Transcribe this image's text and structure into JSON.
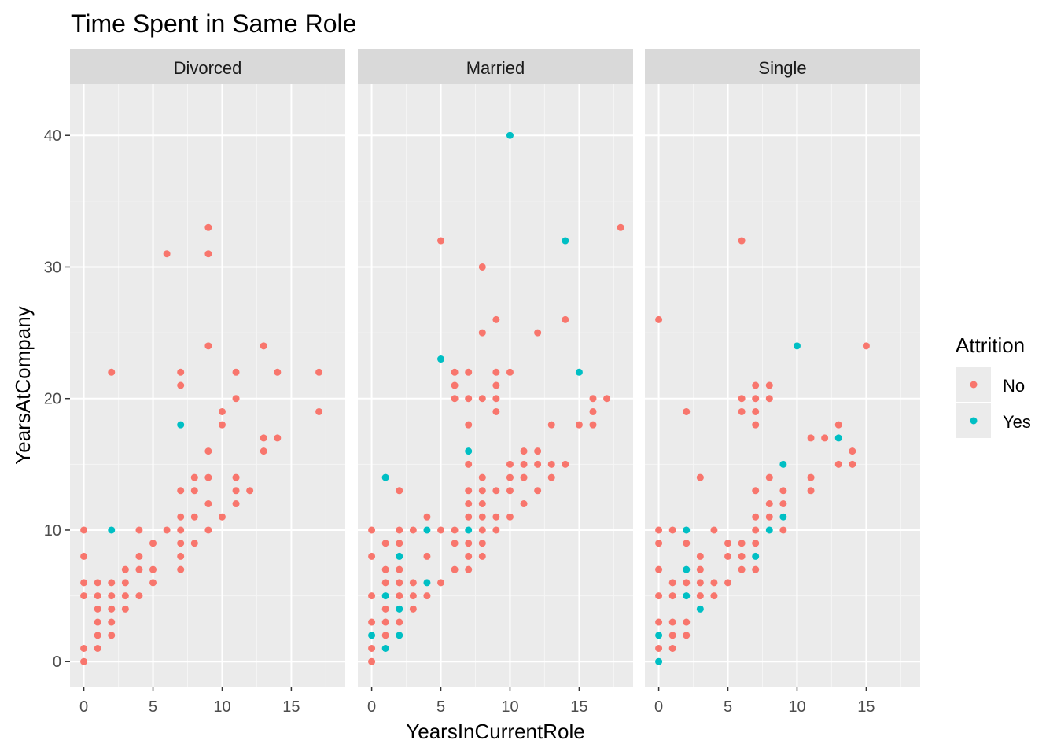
{
  "chart_data": {
    "type": "scatter",
    "title": "Time Spent in Same Role",
    "xlabel": "YearsInCurrentRole",
    "ylabel": "YearsAtCompany",
    "xlim": [
      -1,
      18.9
    ],
    "ylim": [
      -1.9,
      43.9
    ],
    "x_ticks": [
      0,
      5,
      10,
      15
    ],
    "y_ticks": [
      0,
      10,
      20,
      30,
      40
    ],
    "grid": true,
    "legend": {
      "title": "Attrition",
      "placement": "right",
      "entries": [
        {
          "name": "No",
          "color": "#F8766D"
        },
        {
          "name": "Yes",
          "color": "#00BFC4"
        }
      ]
    },
    "facets": [
      {
        "label": "Divorced",
        "points": {
          "No": [
            [
              0,
              0
            ],
            [
              0,
              1
            ],
            [
              0,
              5
            ],
            [
              0,
              6
            ],
            [
              0,
              8
            ],
            [
              0,
              10
            ],
            [
              1,
              1
            ],
            [
              1,
              2
            ],
            [
              1,
              3
            ],
            [
              1,
              4
            ],
            [
              1,
              5
            ],
            [
              1,
              6
            ],
            [
              2,
              2
            ],
            [
              2,
              3
            ],
            [
              2,
              4
            ],
            [
              2,
              5
            ],
            [
              2,
              6
            ],
            [
              2,
              22
            ],
            [
              3,
              4
            ],
            [
              3,
              5
            ],
            [
              3,
              6
            ],
            [
              3,
              7
            ],
            [
              4,
              5
            ],
            [
              4,
              7
            ],
            [
              4,
              8
            ],
            [
              4,
              10
            ],
            [
              5,
              6
            ],
            [
              5,
              7
            ],
            [
              5,
              9
            ],
            [
              6,
              10
            ],
            [
              6,
              31
            ],
            [
              7,
              7
            ],
            [
              7,
              8
            ],
            [
              7,
              9
            ],
            [
              7,
              10
            ],
            [
              7,
              11
            ],
            [
              7,
              13
            ],
            [
              7,
              21
            ],
            [
              7,
              22
            ],
            [
              8,
              9
            ],
            [
              8,
              11
            ],
            [
              8,
              13
            ],
            [
              8,
              14
            ],
            [
              9,
              10
            ],
            [
              9,
              12
            ],
            [
              9,
              14
            ],
            [
              9,
              16
            ],
            [
              9,
              24
            ],
            [
              9,
              31
            ],
            [
              9,
              33
            ],
            [
              10,
              11
            ],
            [
              10,
              18
            ],
            [
              10,
              19
            ],
            [
              11,
              12
            ],
            [
              11,
              13
            ],
            [
              11,
              14
            ],
            [
              11,
              20
            ],
            [
              11,
              22
            ],
            [
              12,
              13
            ],
            [
              13,
              16
            ],
            [
              13,
              17
            ],
            [
              13,
              24
            ],
            [
              14,
              17
            ],
            [
              14,
              22
            ],
            [
              17,
              19
            ],
            [
              17,
              22
            ]
          ],
          "Yes": [
            [
              2,
              10
            ],
            [
              7,
              18
            ]
          ]
        }
      },
      {
        "label": "Married",
        "points": {
          "No": [
            [
              0,
              0
            ],
            [
              0,
              1
            ],
            [
              0,
              3
            ],
            [
              0,
              5
            ],
            [
              0,
              8
            ],
            [
              0,
              10
            ],
            [
              1,
              2
            ],
            [
              1,
              3
            ],
            [
              1,
              4
            ],
            [
              1,
              6
            ],
            [
              1,
              7
            ],
            [
              1,
              9
            ],
            [
              2,
              3
            ],
            [
              2,
              5
            ],
            [
              2,
              6
            ],
            [
              2,
              7
            ],
            [
              2,
              9
            ],
            [
              2,
              10
            ],
            [
              2,
              13
            ],
            [
              3,
              4
            ],
            [
              3,
              5
            ],
            [
              3,
              6
            ],
            [
              3,
              10
            ],
            [
              4,
              5
            ],
            [
              4,
              8
            ],
            [
              4,
              11
            ],
            [
              5,
              6
            ],
            [
              5,
              10
            ],
            [
              5,
              32
            ],
            [
              6,
              7
            ],
            [
              6,
              9
            ],
            [
              6,
              10
            ],
            [
              6,
              20
            ],
            [
              6,
              21
            ],
            [
              6,
              22
            ],
            [
              7,
              7
            ],
            [
              7,
              8
            ],
            [
              7,
              9
            ],
            [
              7,
              11
            ],
            [
              7,
              12
            ],
            [
              7,
              13
            ],
            [
              7,
              15
            ],
            [
              7,
              18
            ],
            [
              7,
              20
            ],
            [
              7,
              22
            ],
            [
              8,
              8
            ],
            [
              8,
              9
            ],
            [
              8,
              10
            ],
            [
              8,
              11
            ],
            [
              8,
              12
            ],
            [
              8,
              13
            ],
            [
              8,
              14
            ],
            [
              8,
              20
            ],
            [
              8,
              25
            ],
            [
              8,
              30
            ],
            [
              9,
              10
            ],
            [
              9,
              11
            ],
            [
              9,
              13
            ],
            [
              9,
              19
            ],
            [
              9,
              20
            ],
            [
              9,
              21
            ],
            [
              9,
              22
            ],
            [
              9,
              26
            ],
            [
              10,
              11
            ],
            [
              10,
              13
            ],
            [
              10,
              14
            ],
            [
              10,
              15
            ],
            [
              10,
              22
            ],
            [
              11,
              12
            ],
            [
              11,
              14
            ],
            [
              11,
              15
            ],
            [
              11,
              16
            ],
            [
              12,
              13
            ],
            [
              12,
              15
            ],
            [
              12,
              16
            ],
            [
              12,
              25
            ],
            [
              13,
              14
            ],
            [
              13,
              15
            ],
            [
              13,
              18
            ],
            [
              14,
              15
            ],
            [
              14,
              26
            ],
            [
              15,
              18
            ],
            [
              16,
              18
            ],
            [
              16,
              19
            ],
            [
              16,
              20
            ],
            [
              17,
              20
            ],
            [
              18,
              33
            ]
          ],
          "Yes": [
            [
              0,
              2
            ],
            [
              1,
              1
            ],
            [
              1,
              5
            ],
            [
              1,
              14
            ],
            [
              2,
              2
            ],
            [
              2,
              4
            ],
            [
              2,
              8
            ],
            [
              4,
              6
            ],
            [
              4,
              10
            ],
            [
              5,
              23
            ],
            [
              7,
              10
            ],
            [
              7,
              16
            ],
            [
              10,
              40
            ],
            [
              14,
              32
            ],
            [
              15,
              22
            ]
          ]
        }
      },
      {
        "label": "Single",
        "points": {
          "No": [
            [
              0,
              1
            ],
            [
              0,
              3
            ],
            [
              0,
              5
            ],
            [
              0,
              7
            ],
            [
              0,
              9
            ],
            [
              0,
              10
            ],
            [
              0,
              26
            ],
            [
              1,
              1
            ],
            [
              1,
              2
            ],
            [
              1,
              3
            ],
            [
              1,
              5
            ],
            [
              1,
              6
            ],
            [
              1,
              10
            ],
            [
              2,
              2
            ],
            [
              2,
              3
            ],
            [
              2,
              6
            ],
            [
              2,
              9
            ],
            [
              2,
              19
            ],
            [
              3,
              5
            ],
            [
              3,
              6
            ],
            [
              3,
              7
            ],
            [
              3,
              8
            ],
            [
              3,
              14
            ],
            [
              4,
              5
            ],
            [
              4,
              6
            ],
            [
              4,
              10
            ],
            [
              5,
              6
            ],
            [
              5,
              8
            ],
            [
              5,
              9
            ],
            [
              6,
              7
            ],
            [
              6,
              8
            ],
            [
              6,
              9
            ],
            [
              6,
              19
            ],
            [
              6,
              20
            ],
            [
              6,
              32
            ],
            [
              7,
              7
            ],
            [
              7,
              9
            ],
            [
              7,
              10
            ],
            [
              7,
              11
            ],
            [
              7,
              13
            ],
            [
              7,
              18
            ],
            [
              7,
              19
            ],
            [
              7,
              20
            ],
            [
              7,
              21
            ],
            [
              8,
              11
            ],
            [
              8,
              12
            ],
            [
              8,
              14
            ],
            [
              8,
              20
            ],
            [
              8,
              21
            ],
            [
              9,
              10
            ],
            [
              9,
              12
            ],
            [
              9,
              13
            ],
            [
              11,
              13
            ],
            [
              11,
              14
            ],
            [
              11,
              17
            ],
            [
              12,
              17
            ],
            [
              13,
              15
            ],
            [
              13,
              18
            ],
            [
              14,
              15
            ],
            [
              14,
              16
            ],
            [
              15,
              24
            ]
          ],
          "Yes": [
            [
              0,
              0
            ],
            [
              0,
              2
            ],
            [
              2,
              5
            ],
            [
              2,
              7
            ],
            [
              2,
              10
            ],
            [
              3,
              4
            ],
            [
              7,
              8
            ],
            [
              8,
              10
            ],
            [
              9,
              11
            ],
            [
              9,
              15
            ],
            [
              10,
              24
            ],
            [
              13,
              17
            ]
          ]
        }
      }
    ]
  }
}
